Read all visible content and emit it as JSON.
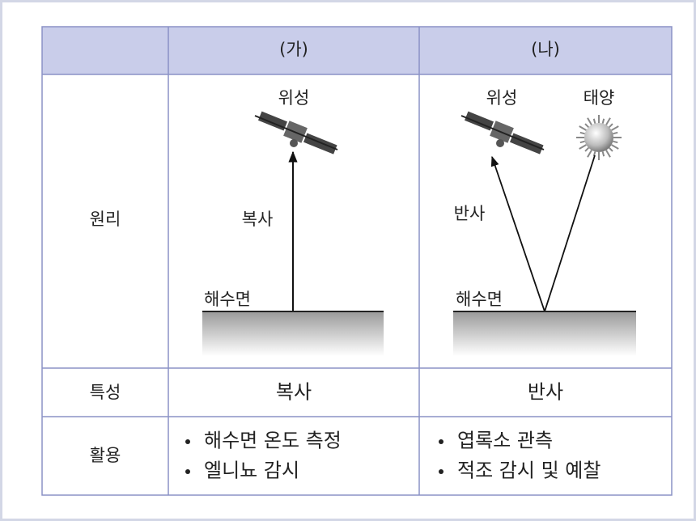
{
  "table": {
    "headers": [
      "(가)",
      "(나)"
    ],
    "rows": [
      {
        "label": "원리",
        "cells": [
          {
            "satellite": "위성",
            "arrow": "복사",
            "surface": "해수면"
          },
          {
            "satellite": "위성",
            "sun": "태양",
            "arrow": "반사",
            "surface": "해수면"
          }
        ]
      },
      {
        "label": "특성",
        "cells": [
          "복사",
          "반사"
        ]
      },
      {
        "label": "활용",
        "cells": [
          [
            "해수면 온도 측정",
            "엘니뇨 감시"
          ],
          [
            "엽록소 관측",
            "적조 감시 및 예찰"
          ]
        ]
      }
    ]
  }
}
